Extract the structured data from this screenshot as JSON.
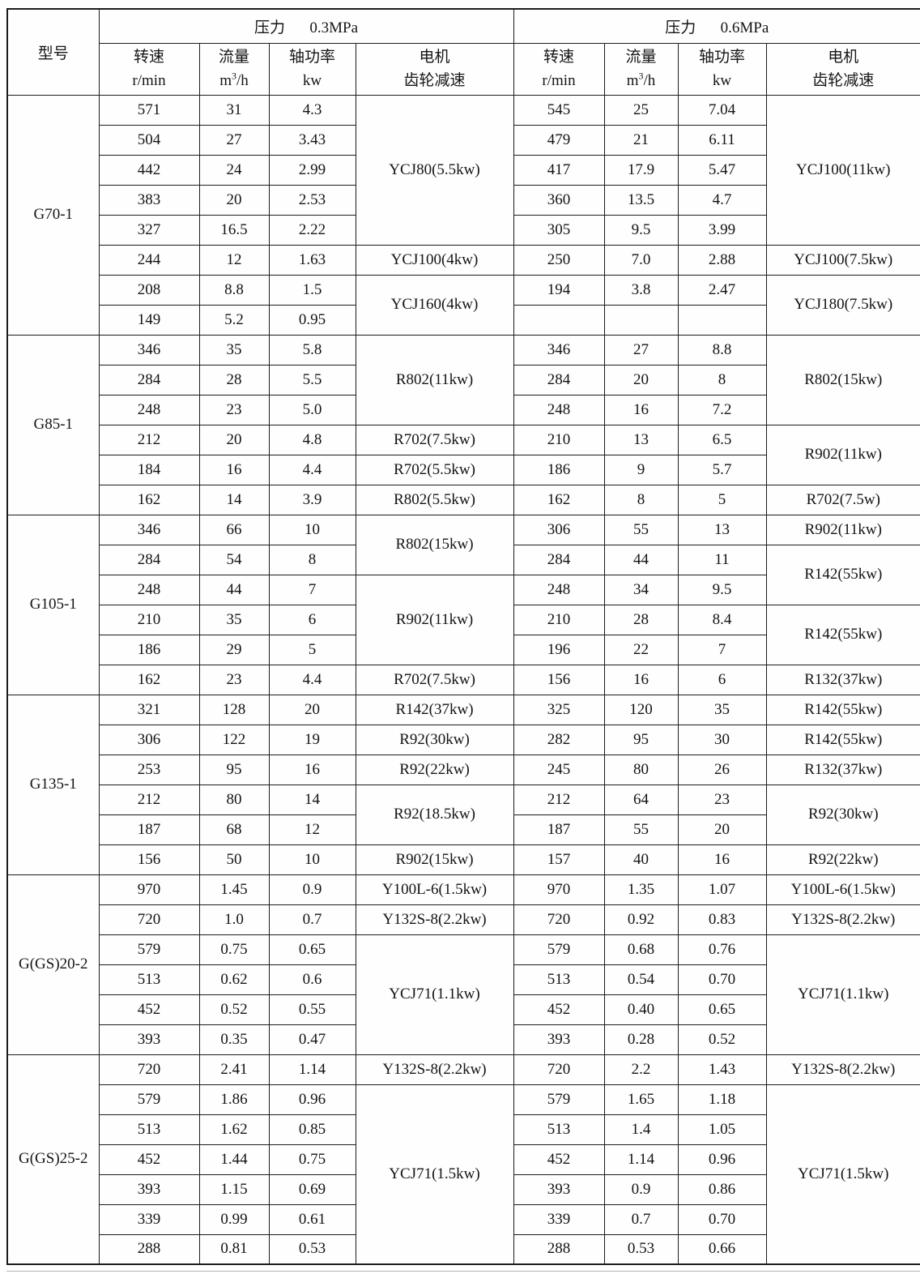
{
  "header": {
    "model_label": "型号",
    "pressure_sections": [
      {
        "label": "压力",
        "value": "0.3MPa"
      },
      {
        "label": "压力",
        "value": "0.6MPa"
      }
    ],
    "speed_l1": "转速",
    "speed_l2": "r/min",
    "flow_l1": "流量",
    "flow_unit_base": "m",
    "flow_unit_sup": "3",
    "flow_unit_rest": "/h",
    "power_l1": "轴功率",
    "power_l2": "kw",
    "motor_l1": "电机",
    "motor_l2": "齿轮减速"
  },
  "groups": [
    {
      "model": "G70-1",
      "rows": [
        {
          "l": [
            "571",
            "31",
            "4.3"
          ],
          "r": [
            "545",
            "25",
            "7.04"
          ]
        },
        {
          "l": [
            "504",
            "27",
            "3.43"
          ],
          "r": [
            "479",
            "21",
            "6.11"
          ]
        },
        {
          "l": [
            "442",
            "24",
            "2.99"
          ],
          "r": [
            "417",
            "17.9",
            "5.47"
          ]
        },
        {
          "l": [
            "383",
            "20",
            "2.53"
          ],
          "r": [
            "360",
            "13.5",
            "4.7"
          ]
        },
        {
          "l": [
            "327",
            "16.5",
            "2.22"
          ],
          "r": [
            "305",
            "9.5",
            "3.99"
          ]
        },
        {
          "l": [
            "244",
            "12",
            "1.63"
          ],
          "r": [
            "250",
            "7.0",
            "2.88"
          ]
        },
        {
          "l": [
            "208",
            "8.8",
            "1.5"
          ],
          "r": [
            "194",
            "3.8",
            "2.47"
          ]
        },
        {
          "l": [
            "149",
            "5.2",
            "0.95"
          ],
          "r": [
            "",
            "",
            ""
          ]
        }
      ],
      "left_motors": [
        {
          "row": 0,
          "span": 5,
          "label": "YCJ80(5.5kw)"
        },
        {
          "row": 5,
          "span": 1,
          "label": "YCJ100(4kw)"
        },
        {
          "row": 6,
          "span": 2,
          "label": "YCJ160(4kw)"
        }
      ],
      "right_motors": [
        {
          "row": 0,
          "span": 5,
          "label": "YCJ100(11kw)"
        },
        {
          "row": 5,
          "span": 1,
          "label": "YCJ100(7.5kw)"
        },
        {
          "row": 6,
          "span": 2,
          "label": "YCJ180(7.5kw)"
        }
      ]
    },
    {
      "model": "G85-1",
      "rows": [
        {
          "l": [
            "346",
            "35",
            "5.8"
          ],
          "r": [
            "346",
            "27",
            "8.8"
          ]
        },
        {
          "l": [
            "284",
            "28",
            "5.5"
          ],
          "r": [
            "284",
            "20",
            "8"
          ]
        },
        {
          "l": [
            "248",
            "23",
            "5.0"
          ],
          "r": [
            "248",
            "16",
            "7.2"
          ]
        },
        {
          "l": [
            "212",
            "20",
            "4.8"
          ],
          "r": [
            "210",
            "13",
            "6.5"
          ]
        },
        {
          "l": [
            "184",
            "16",
            "4.4"
          ],
          "r": [
            "186",
            "9",
            "5.7"
          ]
        },
        {
          "l": [
            "162",
            "14",
            "3.9"
          ],
          "r": [
            "162",
            "8",
            "5"
          ]
        }
      ],
      "left_motors": [
        {
          "row": 0,
          "span": 3,
          "label": "R802(11kw)"
        },
        {
          "row": 3,
          "span": 1,
          "label": "R702(7.5kw)"
        },
        {
          "row": 4,
          "span": 1,
          "label": "R702(5.5kw)"
        },
        {
          "row": 5,
          "span": 1,
          "label": "R802(5.5kw)"
        }
      ],
      "right_motors": [
        {
          "row": 0,
          "span": 3,
          "label": "R802(15kw)"
        },
        {
          "row": 3,
          "span": 2,
          "label": "R902(11kw)"
        },
        {
          "row": 5,
          "span": 1,
          "label": "R702(7.5w)"
        }
      ]
    },
    {
      "model": "G105-1",
      "rows": [
        {
          "l": [
            "346",
            "66",
            "10"
          ],
          "r": [
            "306",
            "55",
            "13"
          ]
        },
        {
          "l": [
            "284",
            "54",
            "8"
          ],
          "r": [
            "284",
            "44",
            "11"
          ]
        },
        {
          "l": [
            "248",
            "44",
            "7"
          ],
          "r": [
            "248",
            "34",
            "9.5"
          ]
        },
        {
          "l": [
            "210",
            "35",
            "6"
          ],
          "r": [
            "210",
            "28",
            "8.4"
          ]
        },
        {
          "l": [
            "186",
            "29",
            "5"
          ],
          "r": [
            "196",
            "22",
            "7"
          ]
        },
        {
          "l": [
            "162",
            "23",
            "4.4"
          ],
          "r": [
            "156",
            "16",
            "6"
          ]
        }
      ],
      "left_motors": [
        {
          "row": 0,
          "span": 2,
          "label": "R802(15kw)"
        },
        {
          "row": 2,
          "span": 3,
          "label": "R902(11kw)"
        },
        {
          "row": 5,
          "span": 1,
          "label": "R702(7.5kw)"
        }
      ],
      "right_motors": [
        {
          "row": 0,
          "span": 1,
          "label": "R902(11kw)"
        },
        {
          "row": 1,
          "span": 2,
          "label": "R142(55kw)"
        },
        {
          "row": 3,
          "span": 2,
          "label": "R142(55kw)"
        },
        {
          "row": 5,
          "span": 1,
          "label": "R132(37kw)"
        }
      ]
    },
    {
      "model": "G135-1",
      "rows": [
        {
          "l": [
            "321",
            "128",
            "20"
          ],
          "r": [
            "325",
            "120",
            "35"
          ]
        },
        {
          "l": [
            "306",
            "122",
            "19"
          ],
          "r": [
            "282",
            "95",
            "30"
          ]
        },
        {
          "l": [
            "253",
            "95",
            "16"
          ],
          "r": [
            "245",
            "80",
            "26"
          ]
        },
        {
          "l": [
            "212",
            "80",
            "14"
          ],
          "r": [
            "212",
            "64",
            "23"
          ]
        },
        {
          "l": [
            "187",
            "68",
            "12"
          ],
          "r": [
            "187",
            "55",
            "20"
          ]
        },
        {
          "l": [
            "156",
            "50",
            "10"
          ],
          "r": [
            "157",
            "40",
            "16"
          ]
        }
      ],
      "left_motors": [
        {
          "row": 0,
          "span": 1,
          "label": "R142(37kw)"
        },
        {
          "row": 1,
          "span": 1,
          "label": "R92(30kw)"
        },
        {
          "row": 2,
          "span": 1,
          "label": "R92(22kw)"
        },
        {
          "row": 3,
          "span": 2,
          "label": "R92(18.5kw)"
        },
        {
          "row": 5,
          "span": 1,
          "label": "R902(15kw)"
        }
      ],
      "right_motors": [
        {
          "row": 0,
          "span": 1,
          "label": "R142(55kw)"
        },
        {
          "row": 1,
          "span": 1,
          "label": "R142(55kw)"
        },
        {
          "row": 2,
          "span": 1,
          "label": "R132(37kw)"
        },
        {
          "row": 3,
          "span": 2,
          "label": "R92(30kw)"
        },
        {
          "row": 5,
          "span": 1,
          "label": "R92(22kw)"
        }
      ]
    },
    {
      "model": "G(GS)20-2",
      "rows": [
        {
          "l": [
            "970",
            "1.45",
            "0.9"
          ],
          "r": [
            "970",
            "1.35",
            "1.07"
          ]
        },
        {
          "l": [
            "720",
            "1.0",
            "0.7"
          ],
          "r": [
            "720",
            "0.92",
            "0.83"
          ]
        },
        {
          "l": [
            "579",
            "0.75",
            "0.65"
          ],
          "r": [
            "579",
            "0.68",
            "0.76"
          ]
        },
        {
          "l": [
            "513",
            "0.62",
            "0.6"
          ],
          "r": [
            "513",
            "0.54",
            "0.70"
          ]
        },
        {
          "l": [
            "452",
            "0.52",
            "0.55"
          ],
          "r": [
            "452",
            "0.40",
            "0.65"
          ]
        },
        {
          "l": [
            "393",
            "0.35",
            "0.47"
          ],
          "r": [
            "393",
            "0.28",
            "0.52"
          ]
        }
      ],
      "left_motors": [
        {
          "row": 0,
          "span": 1,
          "label": "Y100L-6(1.5kw)"
        },
        {
          "row": 1,
          "span": 1,
          "label": "Y132S-8(2.2kw)"
        },
        {
          "row": 2,
          "span": 4,
          "label": "YCJ71(1.1kw)"
        }
      ],
      "right_motors": [
        {
          "row": 0,
          "span": 1,
          "label": "Y100L-6(1.5kw)"
        },
        {
          "row": 1,
          "span": 1,
          "label": "Y132S-8(2.2kw)"
        },
        {
          "row": 2,
          "span": 4,
          "label": "YCJ71(1.1kw)"
        }
      ]
    },
    {
      "model": "G(GS)25-2",
      "rows": [
        {
          "l": [
            "720",
            "2.41",
            "1.14"
          ],
          "r": [
            "720",
            "2.2",
            "1.43"
          ]
        },
        {
          "l": [
            "579",
            "1.86",
            "0.96"
          ],
          "r": [
            "579",
            "1.65",
            "1.18"
          ]
        },
        {
          "l": [
            "513",
            "1.62",
            "0.85"
          ],
          "r": [
            "513",
            "1.4",
            "1.05"
          ]
        },
        {
          "l": [
            "452",
            "1.44",
            "0.75"
          ],
          "r": [
            "452",
            "1.14",
            "0.96"
          ]
        },
        {
          "l": [
            "393",
            "1.15",
            "0.69"
          ],
          "r": [
            "393",
            "0.9",
            "0.86"
          ]
        },
        {
          "l": [
            "339",
            "0.99",
            "0.61"
          ],
          "r": [
            "339",
            "0.7",
            "0.70"
          ]
        },
        {
          "l": [
            "288",
            "0.81",
            "0.53"
          ],
          "r": [
            "288",
            "0.53",
            "0.66"
          ]
        }
      ],
      "left_motors": [
        {
          "row": 0,
          "span": 1,
          "label": "Y132S-8(2.2kw)"
        },
        {
          "row": 1,
          "span": 6,
          "label": "YCJ71(1.5kw)"
        }
      ],
      "right_motors": [
        {
          "row": 0,
          "span": 1,
          "label": "Y132S-8(2.2kw)"
        },
        {
          "row": 1,
          "span": 6,
          "label": "YCJ71(1.5kw)"
        }
      ]
    }
  ]
}
